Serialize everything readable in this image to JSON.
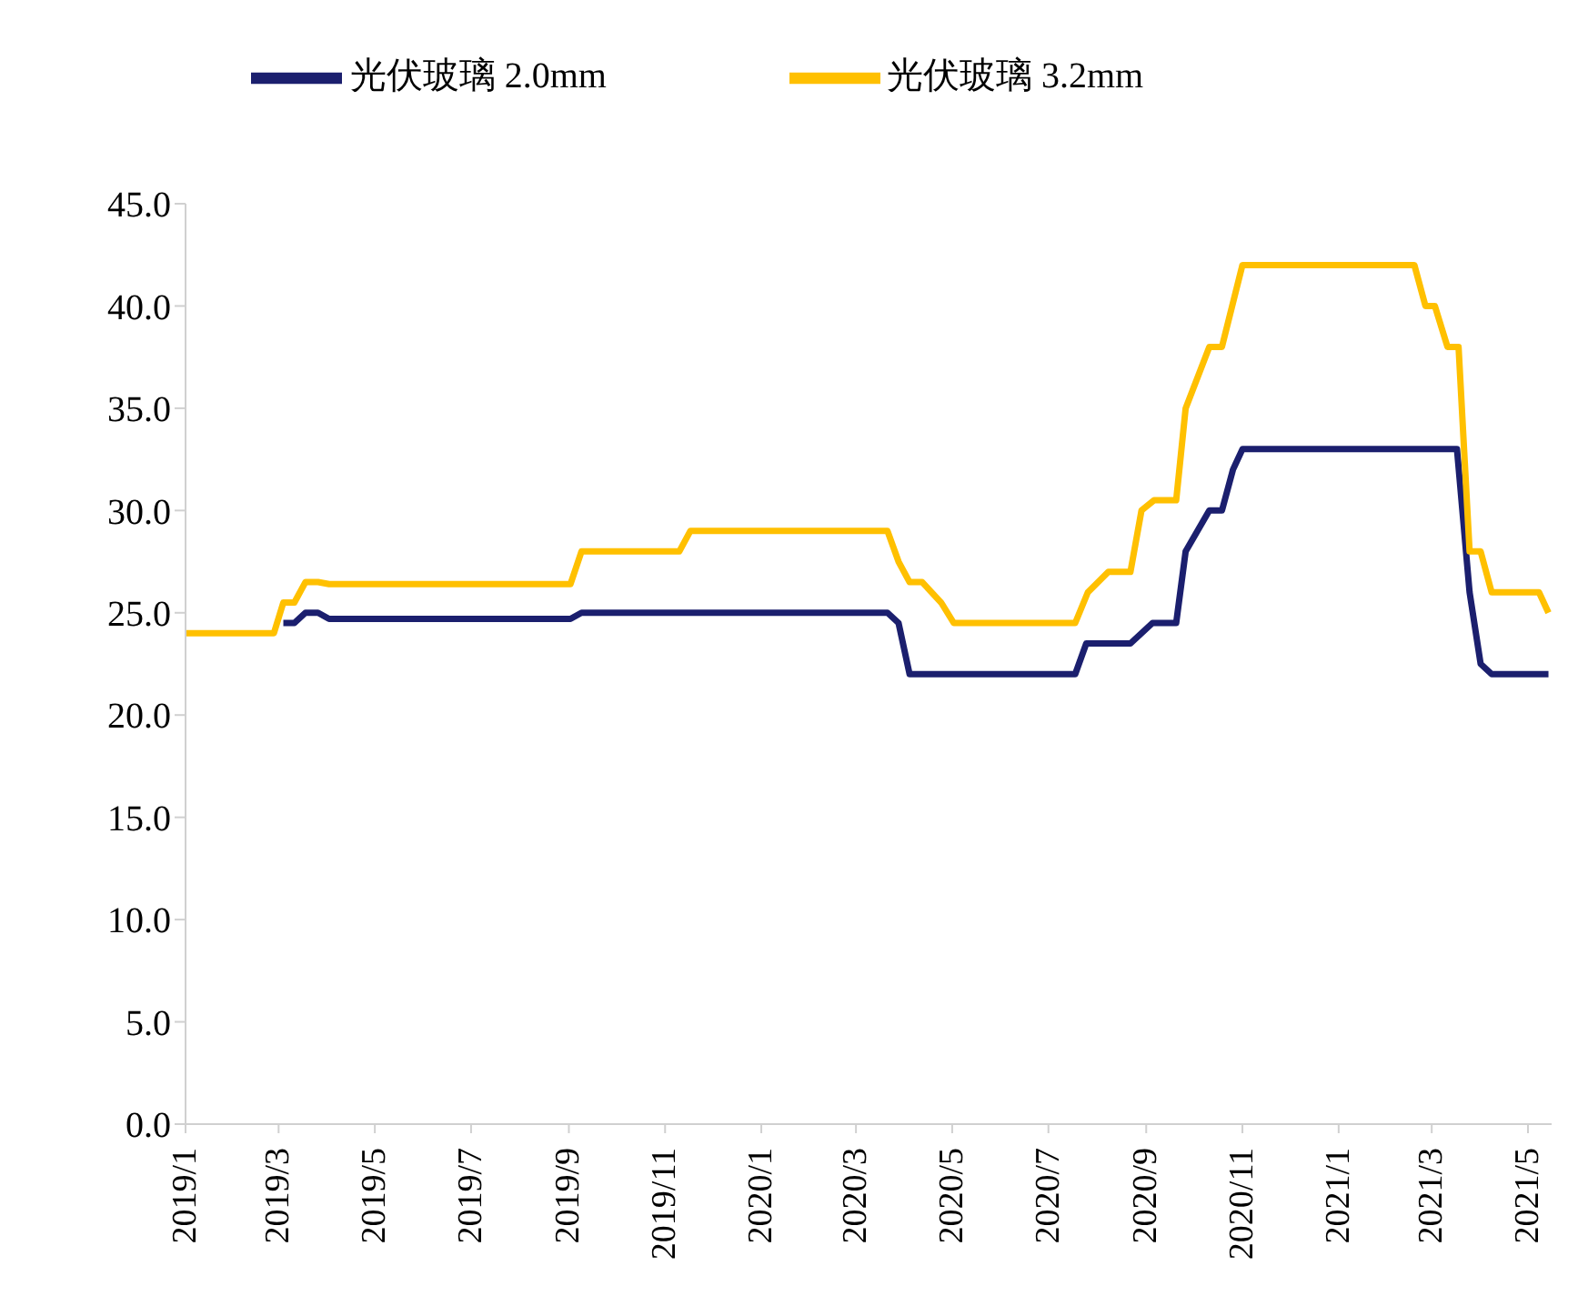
{
  "chart_data": {
    "type": "line",
    "legend": "top",
    "grid": false,
    "line_style": "solid",
    "marker": "none",
    "xlim": [
      "2019-01-01",
      "2021-05-16"
    ],
    "xticks": [
      {
        "value": "2019-01",
        "label": "2019/1"
      },
      {
        "value": "2019-03",
        "label": "2019/3"
      },
      {
        "value": "2019-05",
        "label": "2019/5"
      },
      {
        "value": "2019-07",
        "label": "2019/7"
      },
      {
        "value": "2019-09",
        "label": "2019/9"
      },
      {
        "value": "2019-11",
        "label": "2019/11"
      },
      {
        "value": "2020-01",
        "label": "2020/1"
      },
      {
        "value": "2020-03",
        "label": "2020/3"
      },
      {
        "value": "2020-05",
        "label": "2020/5"
      },
      {
        "value": "2020-07",
        "label": "2020/7"
      },
      {
        "value": "2020-09",
        "label": "2020/9"
      },
      {
        "value": "2020-11",
        "label": "2020/11"
      },
      {
        "value": "2021-01",
        "label": "2021/1"
      },
      {
        "value": "2021-03",
        "label": "2021/3"
      },
      {
        "value": "2021-05",
        "label": "2021/5"
      }
    ],
    "ylim": [
      0,
      45
    ],
    "yticks": [
      {
        "value": 0,
        "label": "0.0"
      },
      {
        "value": 5,
        "label": "5.0"
      },
      {
        "value": 10,
        "label": "10.0"
      },
      {
        "value": 15,
        "label": "15.0"
      },
      {
        "value": 20,
        "label": "20.0"
      },
      {
        "value": 25,
        "label": "25.0"
      },
      {
        "value": 30,
        "label": "30.0"
      },
      {
        "value": 35,
        "label": "35.0"
      },
      {
        "value": 40,
        "label": "40.0"
      },
      {
        "value": 45,
        "label": "45.0"
      }
    ],
    "series": [
      {
        "name": "光伏玻璃 2.0mm",
        "color": "#1b1f6e",
        "x": [
          "2019-03-04",
          "2019-03-11",
          "2019-03-18",
          "2019-03-26",
          "2019-04-02",
          "2019-09-02",
          "2019-09-09",
          "2020-03-21",
          "2020-03-28",
          "2020-04-04",
          "2020-07-18",
          "2020-07-25",
          "2020-08-22",
          "2020-09-05",
          "2020-09-20",
          "2020-09-26",
          "2020-10-11",
          "2020-10-19",
          "2020-10-26",
          "2020-11-01",
          "2021-03-17",
          "2021-03-25",
          "2021-04-01",
          "2021-04-08",
          "2021-05-14"
        ],
        "values": [
          24.5,
          24.5,
          25,
          25,
          24.7,
          24.7,
          25,
          25,
          24.5,
          22,
          22,
          23.5,
          23.5,
          24.5,
          24.5,
          28,
          30,
          30,
          32,
          33,
          33,
          26,
          22.5,
          22,
          22
        ]
      },
      {
        "name": "光伏玻璃 3.2mm",
        "color": "#ffc000",
        "x": [
          "2019-01-01",
          "2019-02-26",
          "2019-03-04",
          "2019-03-11",
          "2019-03-18",
          "2019-03-26",
          "2019-04-02",
          "2019-09-02",
          "2019-09-09",
          "2019-11-10",
          "2019-11-17",
          "2020-03-21",
          "2020-03-28",
          "2020-04-04",
          "2020-04-12",
          "2020-04-24",
          "2020-05-02",
          "2020-07-18",
          "2020-07-26",
          "2020-08-08",
          "2020-08-22",
          "2020-08-29",
          "2020-09-06",
          "2020-09-20",
          "2020-09-26",
          "2020-10-11",
          "2020-10-19",
          "2020-11-01",
          "2021-02-18",
          "2021-02-25",
          "2021-03-03",
          "2021-03-11",
          "2021-03-18",
          "2021-03-25",
          "2021-04-01",
          "2021-04-08",
          "2021-05-08",
          "2021-05-14"
        ],
        "values": [
          24,
          24,
          25.5,
          25.5,
          26.5,
          26.5,
          26.4,
          26.4,
          28,
          28,
          29,
          29,
          27.5,
          26.5,
          26.5,
          25.5,
          24.5,
          24.5,
          26,
          27,
          27,
          30,
          30.5,
          30.5,
          35,
          38,
          38,
          42,
          42,
          40,
          40,
          38,
          38,
          28,
          28,
          26,
          26,
          25
        ]
      }
    ]
  }
}
